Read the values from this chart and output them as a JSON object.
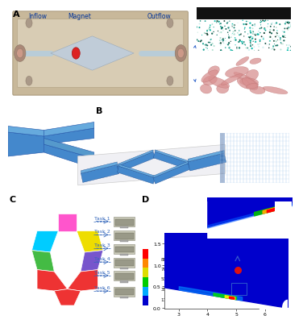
{
  "panel_labels": [
    "A",
    "B",
    "C",
    "D"
  ],
  "panel_A": {
    "inflow_text": "Inflow",
    "magnet_text": "Magnet",
    "outflow_text": "Outflow",
    "chip_bg": "#c8b89a",
    "chip_edge": "#a09070",
    "channel_fill": "#d8cfc0",
    "magnet_color": "#dd2222",
    "connector_color": "#b09080",
    "text_color": "#003399"
  },
  "panel_A_inset1": {
    "bg": "#0a1820",
    "bar_color": "#111111",
    "dot_colors": [
      "#007766",
      "#005544",
      "#009977",
      "#00bb88",
      "#ccdddd",
      "#aacccc"
    ]
  },
  "panel_A_inset2": {
    "bg": "#f0e8e8",
    "cell_color": "#d49090",
    "cell_edge": "#bb7070"
  },
  "panel_B": {
    "channel_face": "#4488cc",
    "channel_top": "#66aadd",
    "channel_dark": "#2255aa",
    "base_face": "#e8e8ec",
    "base_edge": "#bbbbbb",
    "mesh_bg": "#7799bb",
    "mesh_line": "#aaccee"
  },
  "panel_C": {
    "tasks": [
      "Task 1",
      "Task 2",
      "Task 3",
      "Task 4",
      "Task 5",
      "Task 6"
    ],
    "seg_colors": [
      "#ff55cc",
      "#00ccff",
      "#eedd00",
      "#44bb44",
      "#7755cc",
      "#ee3333"
    ],
    "arrow_color": "#3366bb",
    "label_color": "#3366bb"
  },
  "panel_D": {
    "cb_labels": [
      "8868",
      "7094",
      "5321",
      "3547",
      "1774"
    ],
    "cb_colors": [
      "#ff0000",
      "#ff8800",
      "#dddd00",
      "#00cc00",
      "#00aaff",
      "#0000cc"
    ],
    "main_bg": "#0000cc",
    "red_dot": [
      5.0,
      0.9
    ],
    "xticks": [
      3,
      4,
      5,
      6
    ],
    "yticks": [
      0,
      0.5,
      1.0,
      1.5
    ]
  },
  "bg": "#ffffff",
  "lbl_fs": 8,
  "txt_fs": 5.5
}
